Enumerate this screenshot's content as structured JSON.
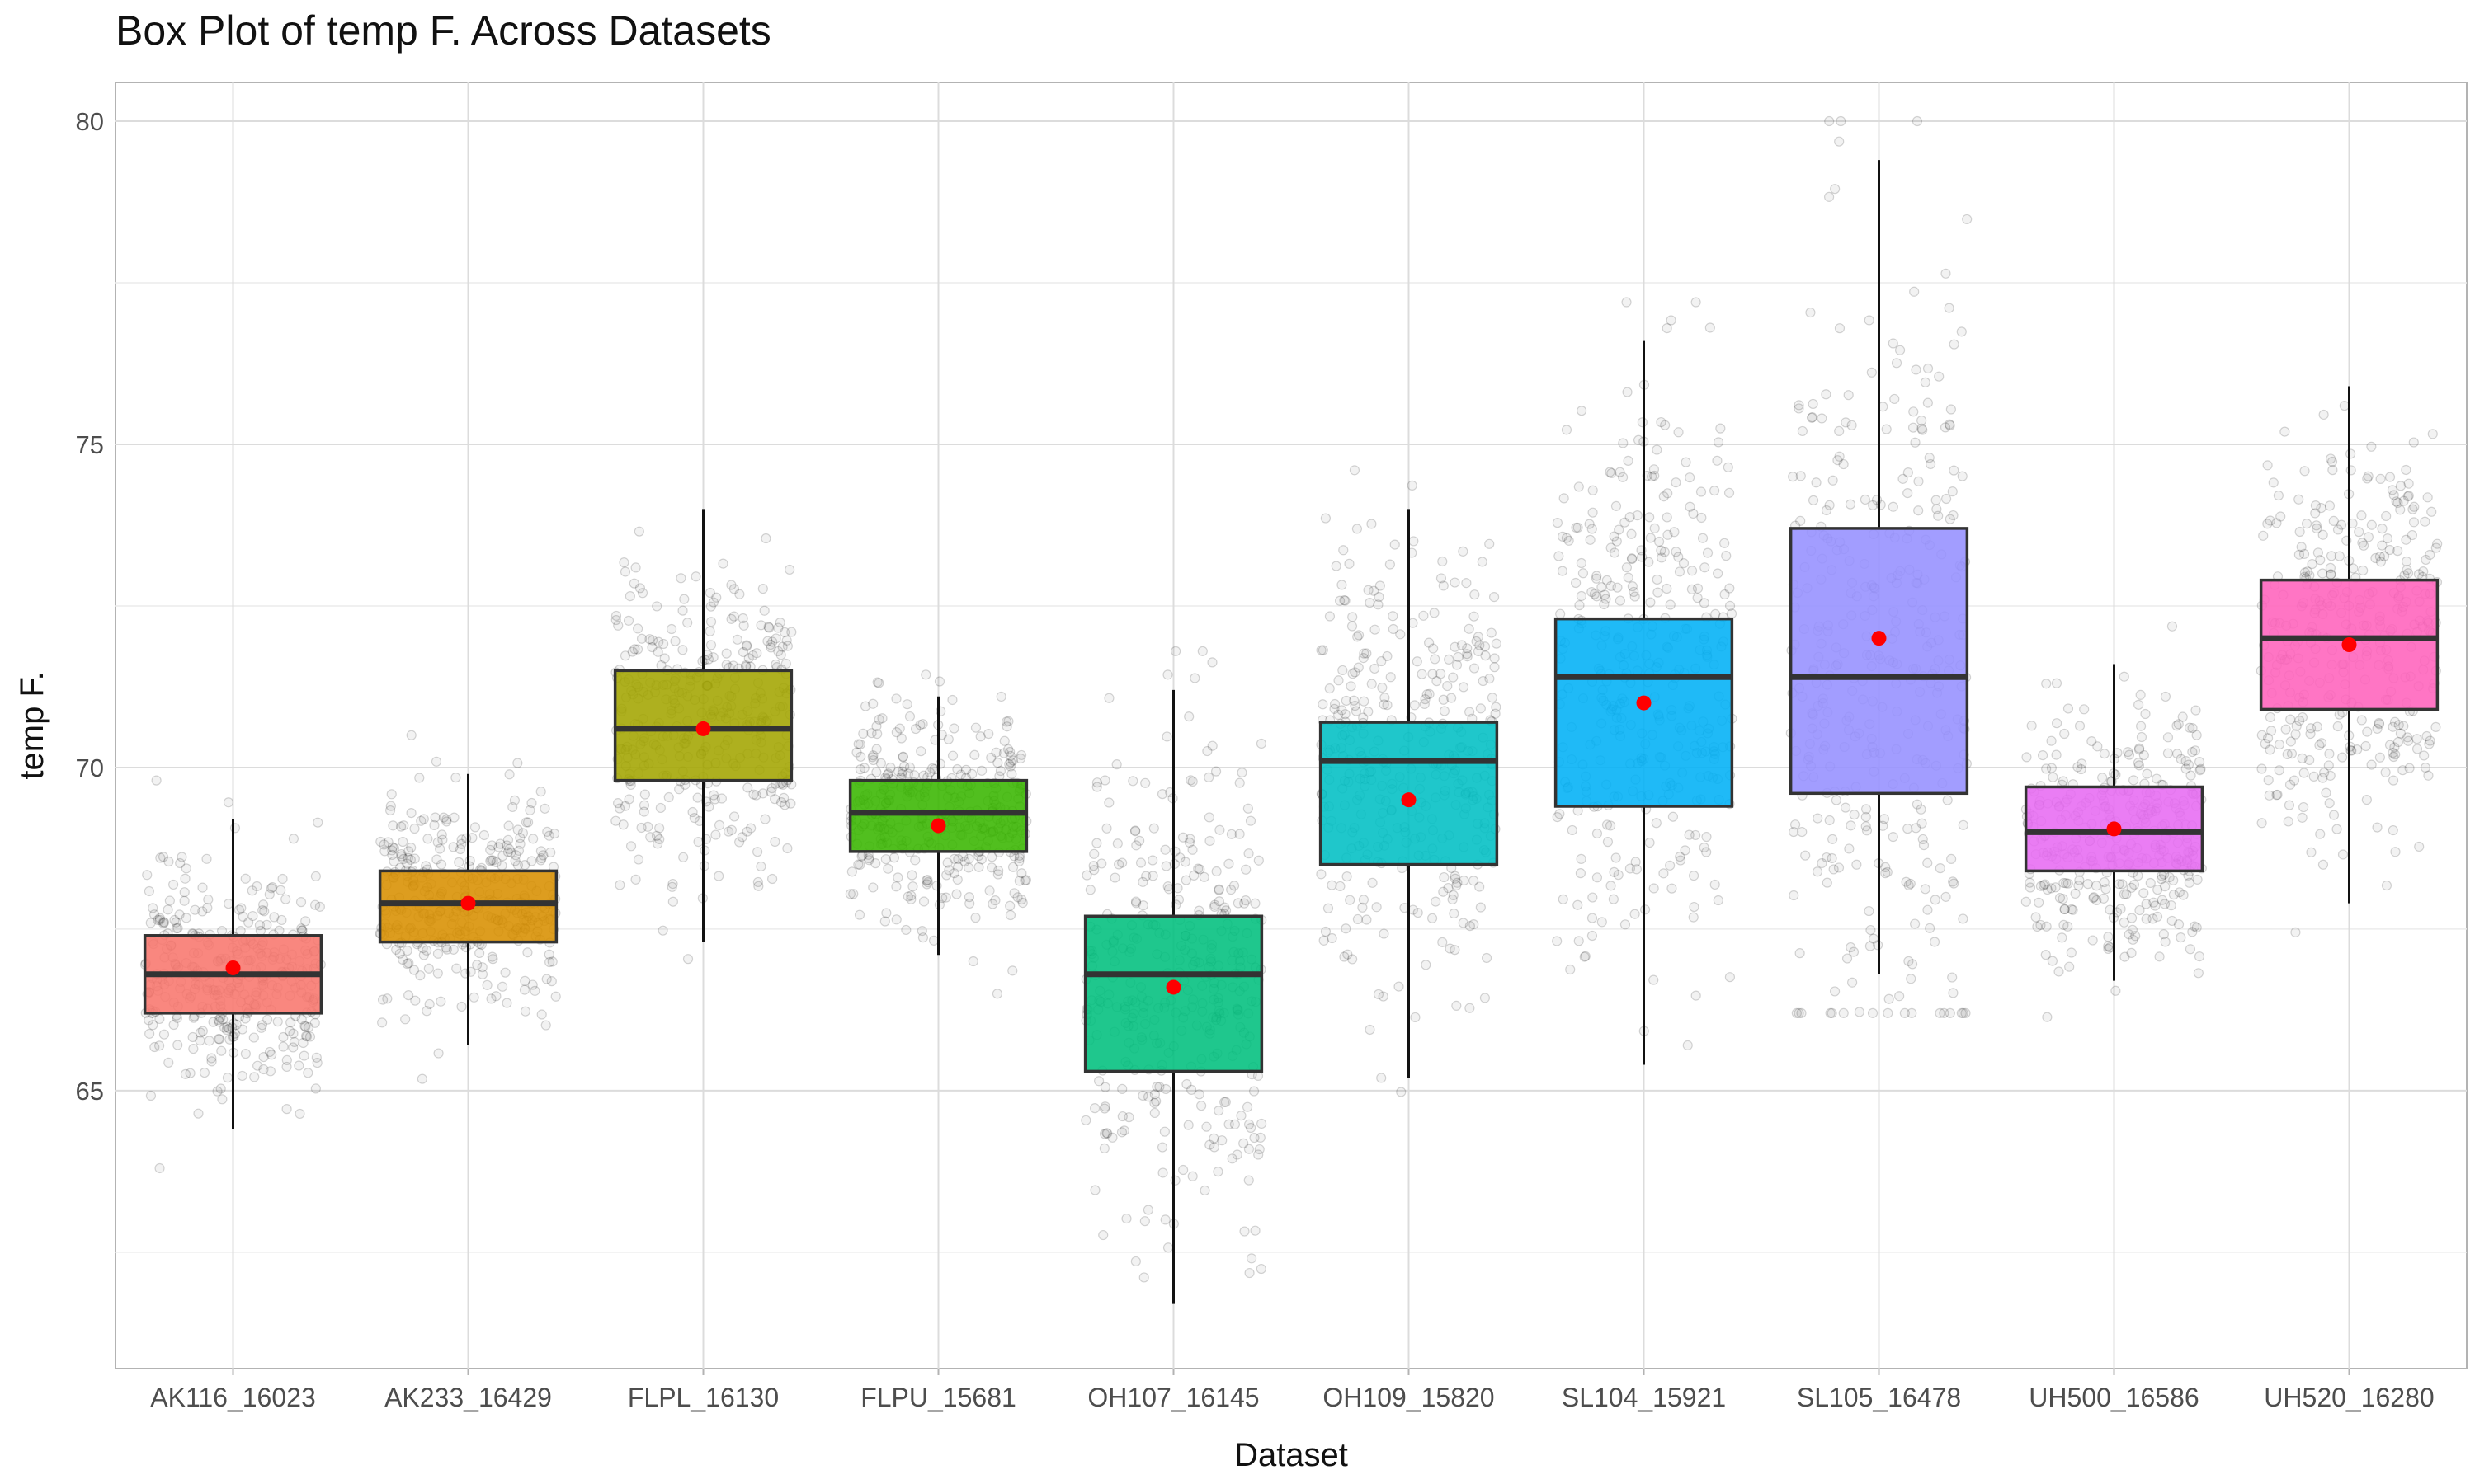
{
  "chart_data": {
    "type": "box",
    "title": "Box Plot of temp F. Across Datasets",
    "xlabel": "Dataset",
    "ylabel": "temp F.",
    "ylim": [
      60.7,
      80.6
    ],
    "yticks": [
      65,
      70,
      75,
      80
    ],
    "grid": true,
    "legend": "none",
    "categories": [
      "AK116_16023",
      "AK233_16429",
      "FLPL_16130",
      "FLPU_15681",
      "OH107_16145",
      "OH109_15820",
      "SL104_15921",
      "SL105_16478",
      "UH500_16586",
      "UH520_16280"
    ],
    "colors": [
      "#F8766D",
      "#D89000",
      "#A3A500",
      "#39B600",
      "#00BF7D",
      "#00BFC4",
      "#00B0F6",
      "#9590FF",
      "#E76BF3",
      "#FF62BC"
    ],
    "series": [
      {
        "category": "AK116_16023",
        "whisker_low": 64.4,
        "q1": 66.2,
        "median": 66.8,
        "q3": 67.4,
        "whisker_high": 69.2,
        "mean": 66.9
      },
      {
        "category": "AK233_16429",
        "whisker_low": 65.7,
        "q1": 67.3,
        "median": 67.9,
        "q3": 68.4,
        "whisker_high": 69.9,
        "mean": 67.9
      },
      {
        "category": "FLPL_16130",
        "whisker_low": 67.3,
        "q1": 69.8,
        "median": 70.6,
        "q3": 71.5,
        "whisker_high": 74.0,
        "mean": 70.6
      },
      {
        "category": "FLPU_15681",
        "whisker_low": 67.1,
        "q1": 68.7,
        "median": 69.3,
        "q3": 69.8,
        "whisker_high": 71.1,
        "mean": 69.1
      },
      {
        "category": "OH107_16145",
        "whisker_low": 61.7,
        "q1": 65.3,
        "median": 66.8,
        "q3": 67.7,
        "whisker_high": 71.2,
        "mean": 66.6
      },
      {
        "category": "OH109_15820",
        "whisker_low": 65.2,
        "q1": 68.5,
        "median": 70.1,
        "q3": 70.7,
        "whisker_high": 74.0,
        "mean": 69.5
      },
      {
        "category": "SL104_15921",
        "whisker_low": 65.4,
        "q1": 69.4,
        "median": 71.4,
        "q3": 72.3,
        "whisker_high": 76.6,
        "mean": 71.0
      },
      {
        "category": "SL105_16478",
        "whisker_low": 66.8,
        "q1": 69.6,
        "median": 71.4,
        "q3": 73.7,
        "whisker_high": 79.4,
        "mean": 72.0
      },
      {
        "category": "UH500_16586",
        "whisker_low": 66.7,
        "q1": 68.4,
        "median": 69.0,
        "q3": 69.7,
        "whisker_high": 71.6,
        "mean": 69.05
      },
      {
        "category": "UH520_16280",
        "whisker_low": 67.9,
        "q1": 70.9,
        "median": 72.0,
        "q3": 72.9,
        "whisker_high": 75.9,
        "mean": 71.9
      }
    ]
  }
}
